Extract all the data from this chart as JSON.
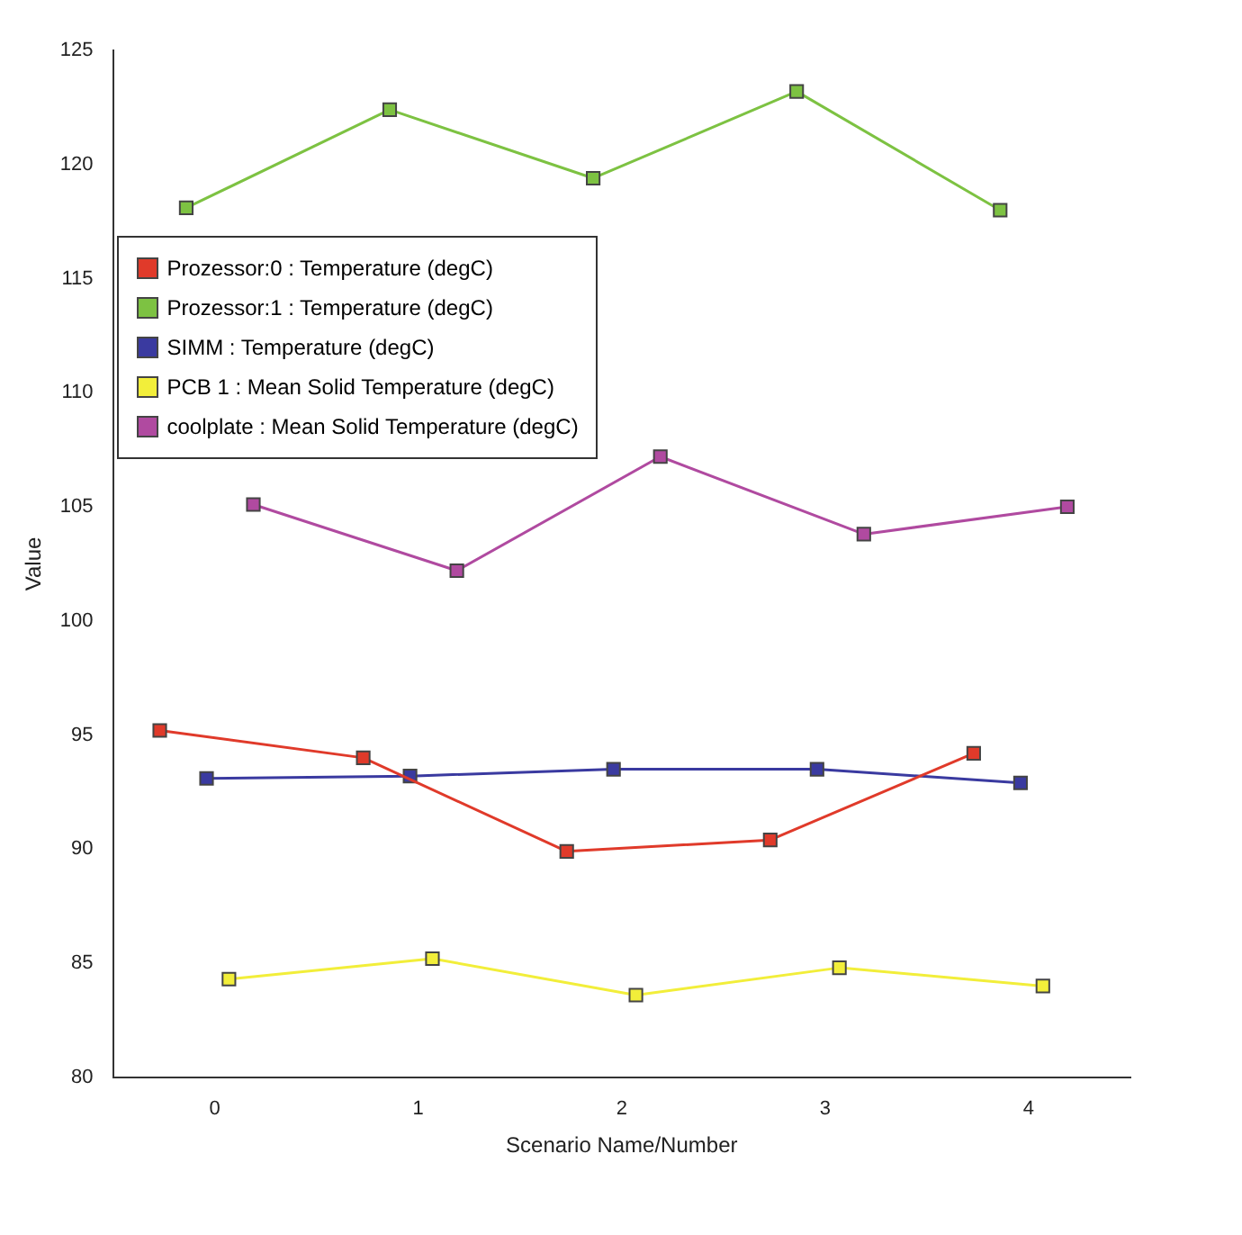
{
  "chart_data": {
    "type": "line",
    "xlabel": "Scenario Name/Number",
    "ylabel": "Value",
    "xlim": [
      -0.5,
      4.5
    ],
    "xticks": [
      0,
      1,
      2,
      3,
      4
    ],
    "ylim": [
      80,
      125
    ],
    "yticks": [
      80,
      85,
      90,
      95,
      100,
      105,
      110,
      115,
      120,
      125
    ],
    "grid": false,
    "legend": "top left",
    "marker": "square",
    "line_style": "solid",
    "series": [
      {
        "name": "Prozessor:0 : Temperature (degC)",
        "color": "#e03a2a",
        "x": [
          -0.27,
          0.73,
          1.73,
          2.73,
          3.73
        ],
        "values": [
          95.2,
          94.0,
          89.9,
          90.4,
          94.2
        ]
      },
      {
        "name": "Prozessor:1 : Temperature (degC)",
        "color": "#7dc242",
        "x": [
          -0.14,
          0.86,
          1.86,
          2.86,
          3.86
        ],
        "values": [
          118.1,
          122.4,
          119.4,
          123.2,
          118.0
        ]
      },
      {
        "name": "SIMM : Temperature (degC)",
        "color": "#3a3aa0",
        "x": [
          -0.04,
          0.96,
          1.96,
          2.96,
          3.96
        ],
        "values": [
          93.1,
          93.2,
          93.5,
          93.5,
          92.9
        ]
      },
      {
        "name": "PCB 1 : Mean Solid Temperature (degC)",
        "color": "#f2ee3a",
        "x": [
          0.07,
          1.07,
          2.07,
          3.07,
          4.07
        ],
        "values": [
          84.3,
          85.2,
          83.6,
          84.8,
          84.0
        ]
      },
      {
        "name": "coolplate : Mean Solid Temperature (degC)",
        "color": "#b04aa0",
        "x": [
          0.19,
          1.19,
          2.19,
          3.19,
          4.19
        ],
        "values": [
          105.1,
          102.2,
          107.2,
          103.8,
          105.0
        ]
      }
    ]
  }
}
